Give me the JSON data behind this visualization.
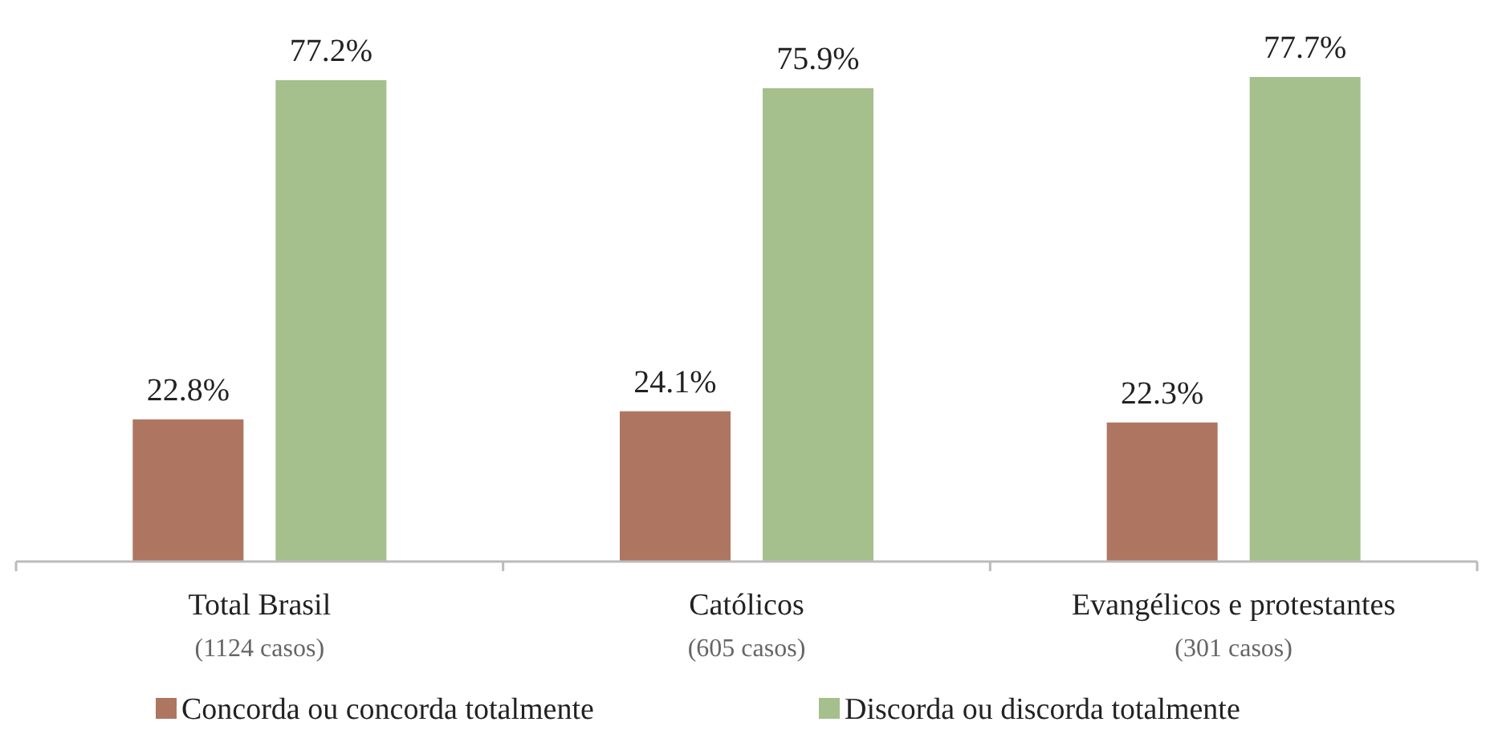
{
  "chart_data": {
    "type": "bar",
    "categories": [
      "Total Brasil\n(1124 casos)",
      "Católicos\n(605 casos)",
      "Evangélicos e protestantes\n(301 casos)"
    ],
    "series": [
      {
        "name": "Concorda ou concorda totalmente",
        "color": "#ae7660",
        "values": [
          22.8,
          24.1,
          22.3
        ],
        "value_labels": [
          "22.8%",
          "24.1%",
          "22.3%"
        ]
      },
      {
        "name": "Discorda ou discorda totalmente",
        "color": "#a5bf8d",
        "values": [
          77.2,
          75.9,
          77.7
        ],
        "value_labels": [
          "77.2%",
          "75.9%",
          "77.7%"
        ]
      }
    ],
    "legend": "bottom"
  }
}
